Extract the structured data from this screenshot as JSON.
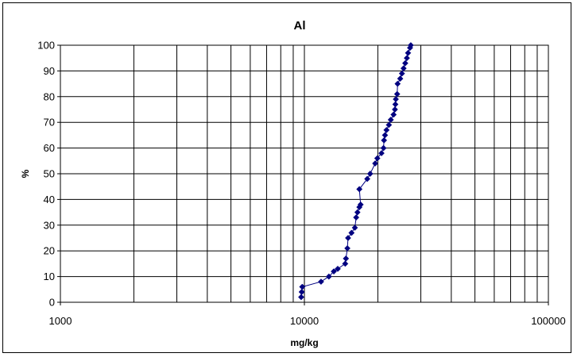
{
  "chart_data": {
    "type": "line",
    "title": "Al",
    "xlabel": "mg/kg",
    "ylabel": "%",
    "x_scale": "log",
    "xlim": [
      1000,
      100000
    ],
    "ylim": [
      0,
      100
    ],
    "x_tick_labels": [
      "1000",
      "10000",
      "100000"
    ],
    "y_tick_labels": [
      "0",
      "10",
      "20",
      "30",
      "40",
      "50",
      "60",
      "70",
      "80",
      "90",
      "100"
    ],
    "grid": true,
    "legend": "none",
    "series": [
      {
        "color": "#000080",
        "marker": "diamond",
        "points": [
          [
            9700,
            2
          ],
          [
            9750,
            4
          ],
          [
            9800,
            6
          ],
          [
            11700,
            8
          ],
          [
            12600,
            10
          ],
          [
            13200,
            12
          ],
          [
            13700,
            13
          ],
          [
            14700,
            15
          ],
          [
            14800,
            17
          ],
          [
            15000,
            21
          ],
          [
            15100,
            25
          ],
          [
            15600,
            27
          ],
          [
            16100,
            29
          ],
          [
            16300,
            33
          ],
          [
            16500,
            35
          ],
          [
            16800,
            37
          ],
          [
            17000,
            38
          ],
          [
            16800,
            44
          ],
          [
            18100,
            48
          ],
          [
            18600,
            50
          ],
          [
            19500,
            54
          ],
          [
            19900,
            56
          ],
          [
            20700,
            58
          ],
          [
            21100,
            60
          ],
          [
            21200,
            63
          ],
          [
            21400,
            65
          ],
          [
            21700,
            67
          ],
          [
            22200,
            69
          ],
          [
            22600,
            71
          ],
          [
            23200,
            73
          ],
          [
            23500,
            75
          ],
          [
            23600,
            77
          ],
          [
            23700,
            79
          ],
          [
            24000,
            81
          ],
          [
            24100,
            85
          ],
          [
            24700,
            87
          ],
          [
            25100,
            89
          ],
          [
            25500,
            91
          ],
          [
            25900,
            93
          ],
          [
            26300,
            95
          ],
          [
            26600,
            97
          ],
          [
            27100,
            99
          ],
          [
            27300,
            100
          ]
        ]
      }
    ]
  }
}
